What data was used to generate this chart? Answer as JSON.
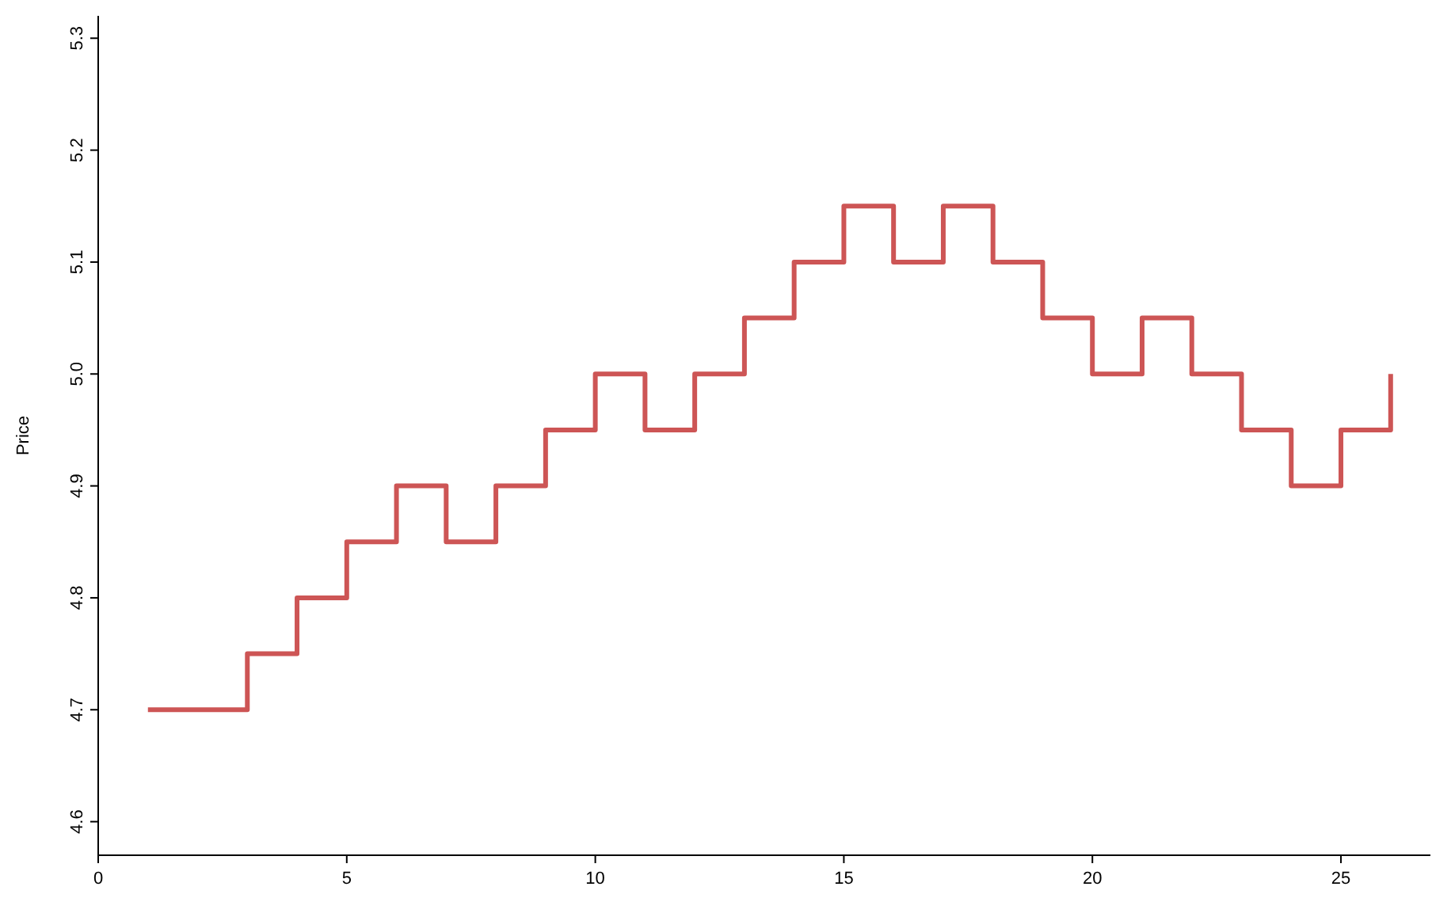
{
  "chart_data": {
    "type": "step",
    "ylabel": "Price",
    "x": [
      1,
      2,
      3,
      4,
      5,
      6,
      7,
      8,
      9,
      10,
      11,
      12,
      13,
      14,
      15,
      16,
      17,
      18,
      19,
      20,
      21,
      22,
      23,
      24,
      25,
      26
    ],
    "series": [
      {
        "color": "#cd5555",
        "values": [
          4.7,
          4.7,
          4.75,
          4.8,
          4.85,
          4.9,
          4.85,
          4.9,
          4.95,
          5.0,
          4.95,
          5.0,
          5.05,
          5.1,
          5.15,
          5.1,
          5.15,
          5.1,
          5.05,
          5.0,
          5.05,
          5.0,
          4.95,
          4.9,
          4.95,
          5.0
        ]
      }
    ],
    "xlim": [
      0,
      26.8
    ],
    "xticks": [
      0,
      5,
      10,
      15,
      20,
      25
    ],
    "ylim": [
      4.57,
      5.32
    ],
    "yticks": [
      {
        "value": 4.6,
        "label": "4.6"
      },
      {
        "value": 4.7,
        "label": "4.7"
      },
      {
        "value": 4.8,
        "label": "4.8"
      },
      {
        "value": 4.9,
        "label": "4.9"
      },
      {
        "value": 5.0,
        "label": "5.0"
      },
      {
        "value": 5.1,
        "label": "5.1"
      },
      {
        "value": 5.2,
        "label": "5.2"
      },
      {
        "value": 5.3,
        "label": "5.3"
      }
    ],
    "line_style": "solid"
  }
}
